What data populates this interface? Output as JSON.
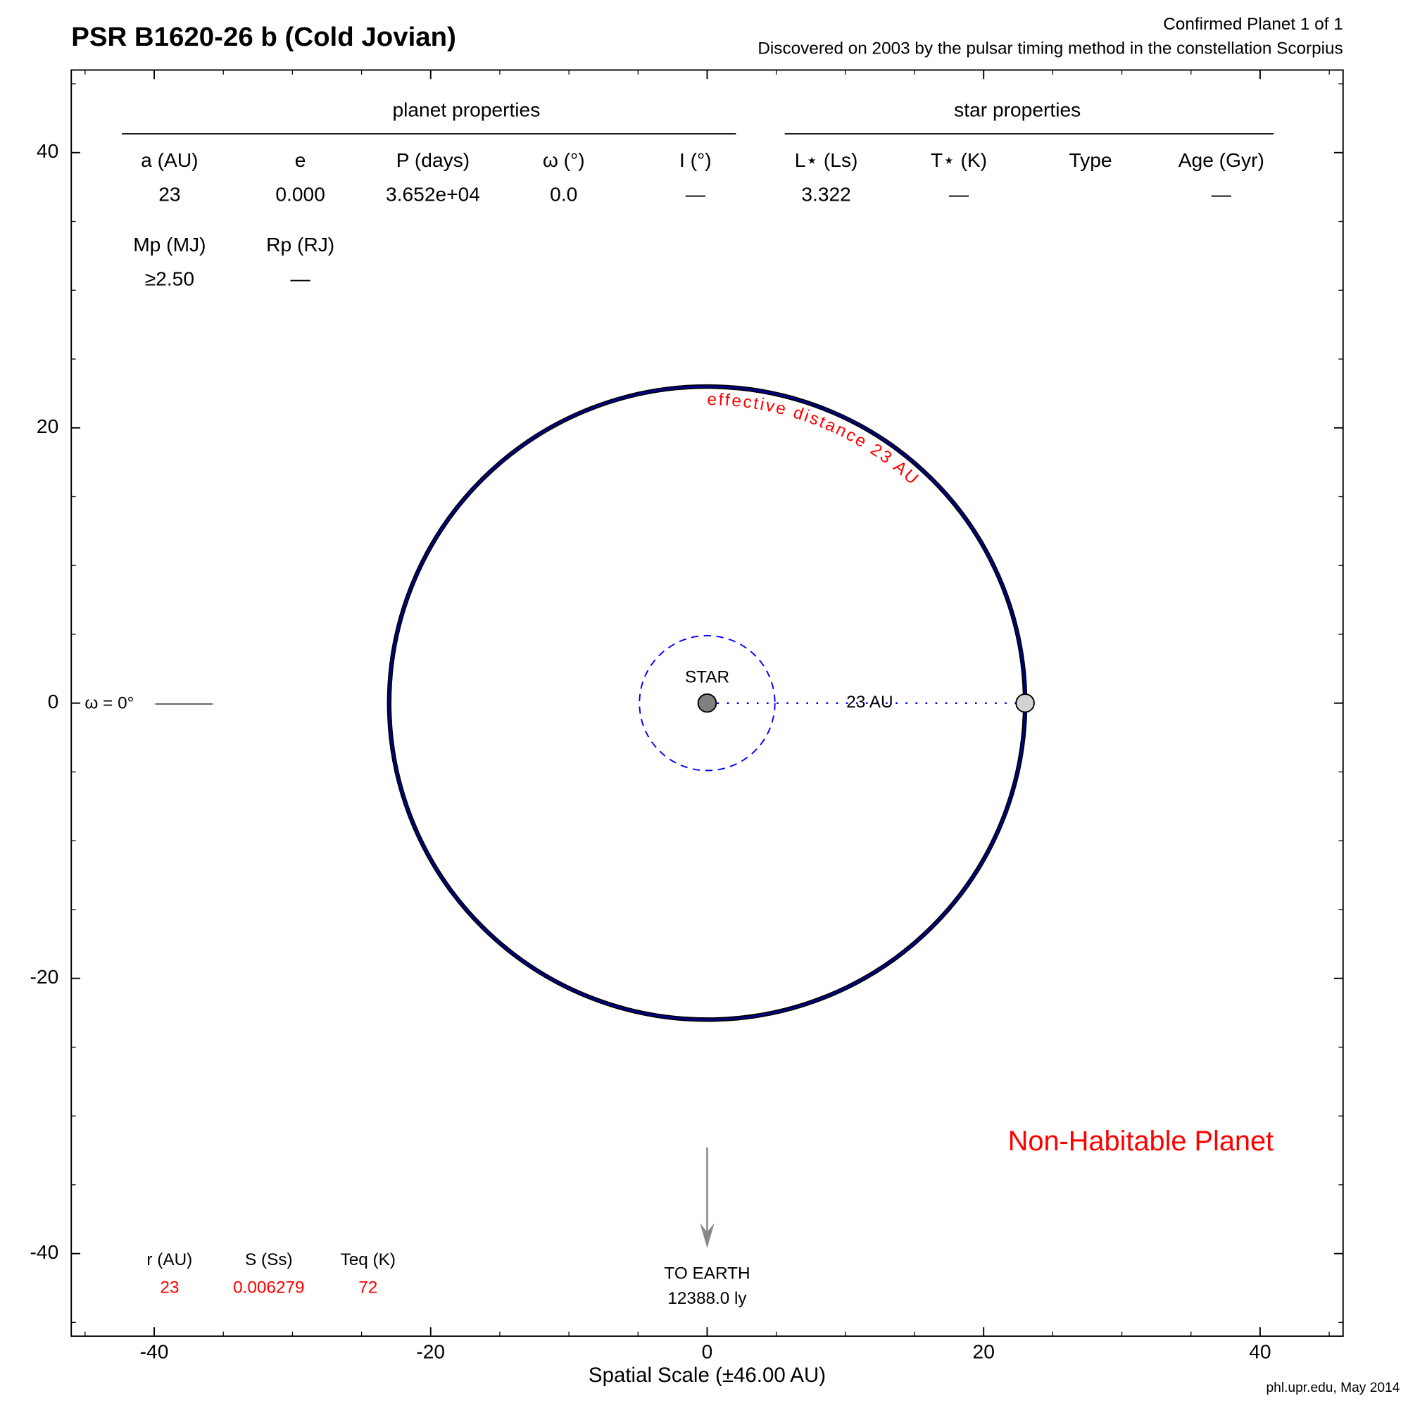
{
  "chart_data": {
    "type": "orbit",
    "title": "PSR B1620-26 b (Cold Jovian)",
    "subtitle": [
      "Confirmed Planet 1 of 1",
      "Discovered on 2003 by the pulsar timing method in the constellation Scorpius"
    ],
    "xlabel": "Spatial Scale (±46.00 AU)",
    "credit": "phl.upr.edu, May 2014",
    "xlim": [
      -46,
      46
    ],
    "ylim": [
      -46,
      46
    ],
    "xticks": [
      -40,
      -20,
      0,
      20,
      40
    ],
    "yticks": [
      -40,
      -20,
      0,
      20,
      40
    ],
    "minor_ticks": [
      -45,
      -35,
      -30,
      -25,
      -15,
      -10,
      -5,
      5,
      10,
      15,
      25,
      30,
      35,
      45
    ],
    "planet_properties": {
      "title": "planet properties",
      "columns": [
        {
          "label": "a (AU)",
          "value": "23"
        },
        {
          "label": "e",
          "value": "0.000"
        },
        {
          "label": "P (days)",
          "value": "3.652e+04"
        },
        {
          "label": "ω (°)",
          "value": "0.0"
        },
        {
          "label": "I (°)",
          "value": "—"
        }
      ]
    },
    "mass_radius": [
      {
        "label": "Mp (MJ)",
        "value": "≥2.50"
      },
      {
        "label": "Rp (RJ)",
        "value": "—"
      }
    ],
    "star_properties": {
      "title": "star properties",
      "columns": [
        {
          "label": "L⋆ (Ls)",
          "value": "3.322"
        },
        {
          "label": "T⋆ (K)",
          "value": "—"
        },
        {
          "label": "Type"
        },
        {
          "label": "Age (Gyr)",
          "value": "—"
        }
      ]
    },
    "orbit": {
      "radius": 23,
      "color": "#000080"
    },
    "zone": {
      "radius": 4.9,
      "color": "#0000ff"
    },
    "star": {
      "label": "STAR",
      "x": 0,
      "y": 0,
      "color": "#808080"
    },
    "planet": {
      "x": 23,
      "y": 0,
      "color": "#d3d3d3"
    },
    "distance_label": "23 AU",
    "orbit_label": "effective distance 23 AU",
    "omega_label": "ω = 0°",
    "status": "Non-Habitable Planet",
    "earth": {
      "label": "TO EARTH",
      "distance": "12388.0 ly"
    },
    "flux_table": [
      {
        "label": "r (AU)",
        "value": "23"
      },
      {
        "label": "S (Ss)",
        "value": "0.006279"
      },
      {
        "label": "Teq (K)",
        "value": "72"
      }
    ]
  }
}
